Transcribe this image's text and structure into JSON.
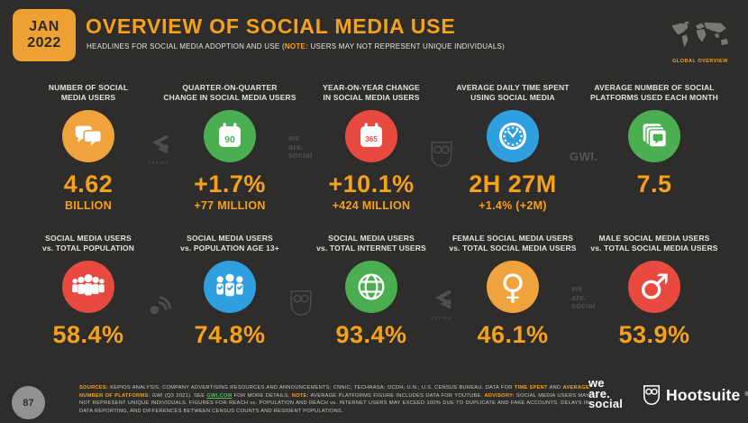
{
  "header": {
    "date_month": "JAN",
    "date_year": "2022",
    "title": "OVERVIEW OF SOCIAL MEDIA USE",
    "subtitle_prefix": "HEADLINES FOR SOCIAL MEDIA ADOPTION AND USE (",
    "subtitle_note": "NOTE:",
    "subtitle_suffix": " USERS MAY NOT REPRESENT UNIQUE INDIVIDUALS)",
    "region_label": "GLOBAL OVERVIEW"
  },
  "cards": [
    {
      "label1": "NUMBER OF SOCIAL",
      "label2": "MEDIA USERS",
      "value": "4.62",
      "subvalue": "BILLION",
      "icon": "speech-bubbles-icon"
    },
    {
      "label1": "QUARTER-ON-QUARTER",
      "label2": "CHANGE IN SOCIAL MEDIA USERS",
      "value": "+1.7%",
      "subvalue": "+77 MILLION",
      "badge": "90",
      "icon": "calendar-90-icon"
    },
    {
      "label1": "YEAR-ON-YEAR CHANGE",
      "label2": "IN SOCIAL MEDIA USERS",
      "value": "+10.1%",
      "subvalue": "+424 MILLION",
      "badge": "365",
      "icon": "calendar-365-icon"
    },
    {
      "label1": "AVERAGE DAILY TIME SPENT",
      "label2": "USING SOCIAL MEDIA",
      "value": "2H 27M",
      "subvalue": "+1.4% (+2M)",
      "icon": "clock-icon"
    },
    {
      "label1": "AVERAGE NUMBER OF SOCIAL",
      "label2": "PLATFORMS USED EACH MONTH",
      "value": "7.5",
      "subvalue": "",
      "icon": "platforms-icon"
    },
    {
      "label1": "SOCIAL MEDIA USERS",
      "label2": "vs. TOTAL POPULATION",
      "value": "58.4%",
      "subvalue": "",
      "icon": "crowd-icon"
    },
    {
      "label1": "SOCIAL MEDIA USERS",
      "label2": "vs. POPULATION AGE 13+",
      "value": "74.8%",
      "subvalue": "",
      "icon": "people-check-icon"
    },
    {
      "label1": "SOCIAL MEDIA USERS",
      "label2": "vs. TOTAL INTERNET USERS",
      "value": "93.4%",
      "subvalue": "",
      "icon": "globe-icon"
    },
    {
      "label1": "FEMALE SOCIAL MEDIA USERS",
      "label2": "vs. TOTAL SOCIAL MEDIA USERS",
      "value": "46.1%",
      "subvalue": "",
      "icon": "female-icon",
      "symbol": "♀"
    },
    {
      "label1": "MALE SOCIAL MEDIA USERS",
      "label2": "vs. TOTAL SOCIAL MEDIA USERS",
      "value": "53.9%",
      "subvalue": "",
      "icon": "male-icon",
      "symbol": "♂"
    }
  ],
  "watermarks": {
    "kepios": "KEPIOS",
    "gwi": "GWI.",
    "wearesocial": [
      "we",
      "are.",
      "social"
    ]
  },
  "footer": {
    "page_number": "87",
    "sources": [
      {
        "t": "SOURCES:",
        "c": "hl"
      },
      {
        "t": " KEPIOS ANALYSIS; COMPANY ADVERTISING RESOURCES AND ANNOUNCEMENTS; CNNIC; TECHRASA; OCDH; U.N.; U.S. CENSUS BUREAU. DATA FOR ",
        "c": ""
      },
      {
        "t": "TIME SPENT",
        "c": "hl"
      },
      {
        "t": " AND ",
        "c": ""
      },
      {
        "t": "AVERAGE NUMBER OF PLATFORMS:",
        "c": "hl"
      },
      {
        "t": " GWI (Q3 2021). SEE ",
        "c": ""
      },
      {
        "t": "GWI.COM",
        "c": "lnk"
      },
      {
        "t": " FOR MORE DETAILS. ",
        "c": ""
      },
      {
        "t": "NOTE:",
        "c": "hl"
      },
      {
        "t": " AVERAGE PLATFORMS FIGURE INCLUDES DATA FOR YOUTUBE. ",
        "c": ""
      },
      {
        "t": "ADVISORY:",
        "c": "hl"
      },
      {
        "t": " SOCIAL MEDIA USERS MAY NOT REPRESENT UNIQUE INDIVIDUALS. FIGURES FOR REACH vs. POPULATION AND REACH vs. INTERNET USERS MAY EXCEED 100% DUE TO DUPLICATE AND FAKE ACCOUNTS, DELAYS IN DATA REPORTING, AND DIFFERENCES BETWEEN CENSUS COUNTS AND RESIDENT POPULATIONS.",
        "c": ""
      }
    ],
    "wearesocial_logo": [
      "we",
      "are.",
      "social"
    ],
    "hootsuite_label": "Hootsuite",
    "hootsuite_reg": "®"
  },
  "colors": {
    "background": "#2e2d2b",
    "accent_orange": "#f5a11c",
    "circle_orange": "#f0a23c",
    "circle_green": "#4bae50",
    "circle_red": "#e84a3f",
    "circle_blue": "#2f9fe0",
    "link_green": "#5bb85d"
  }
}
